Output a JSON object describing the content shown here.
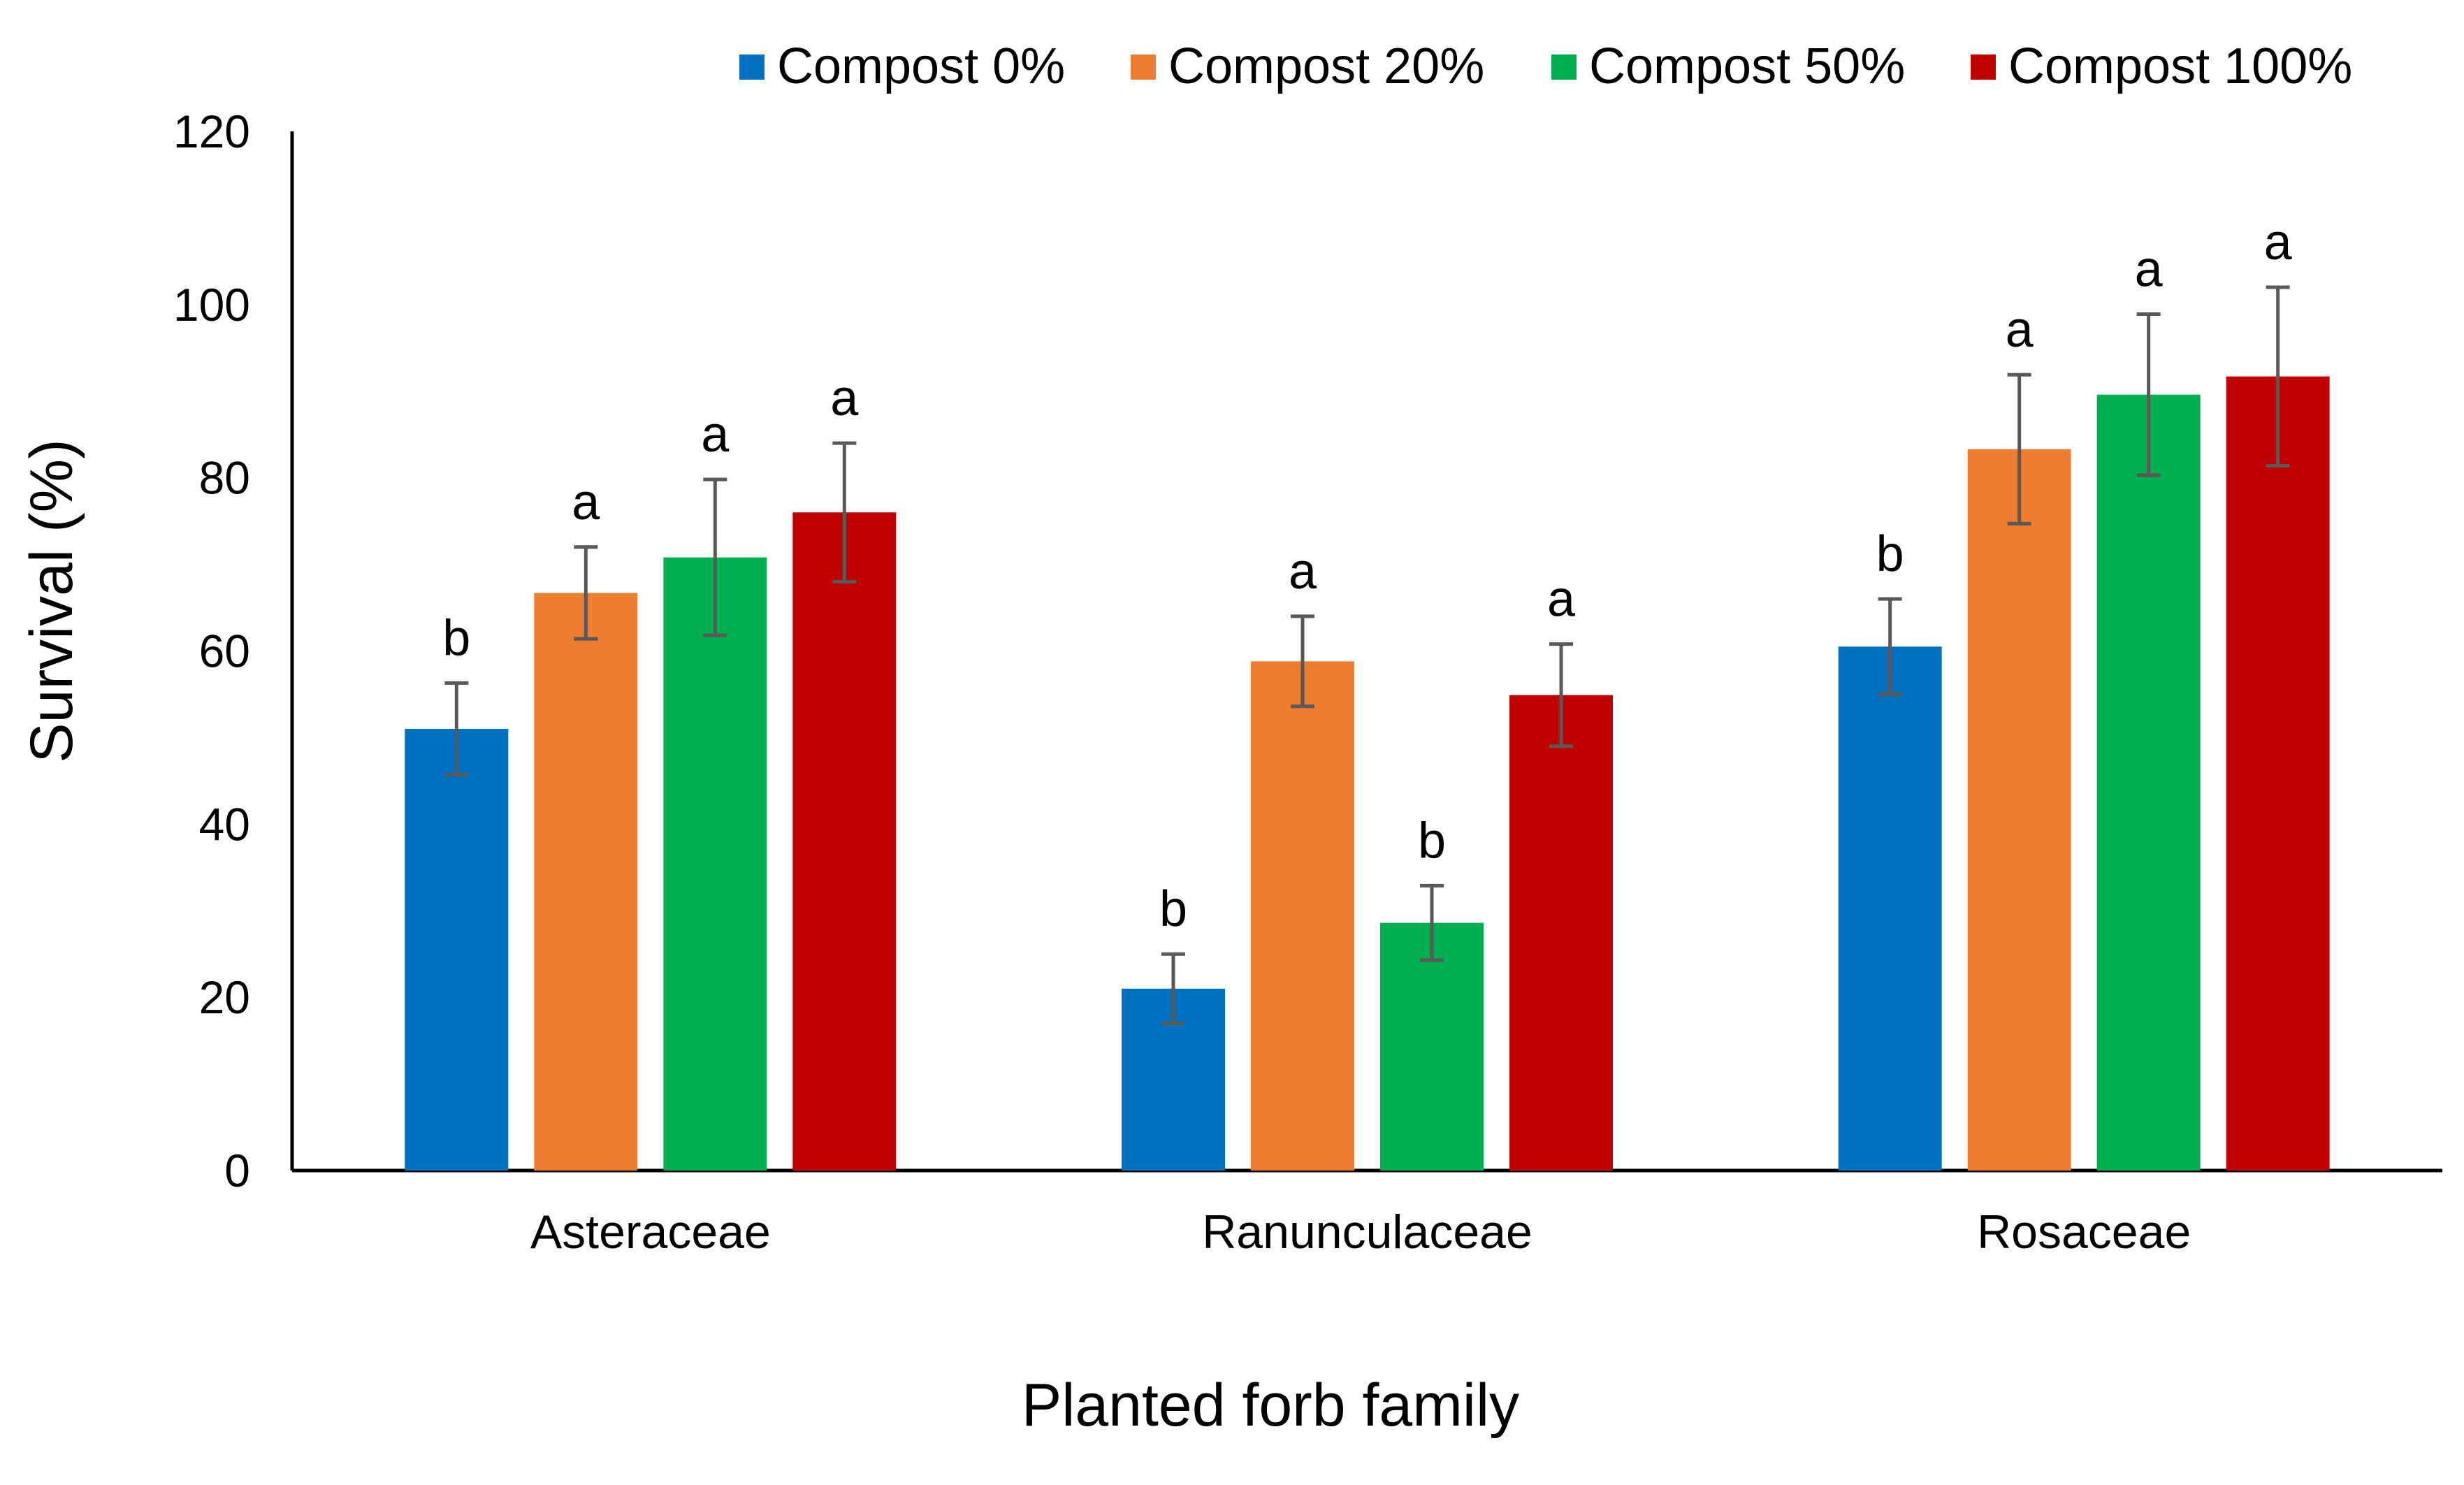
{
  "chart_data": {
    "type": "bar",
    "title": "",
    "xlabel": "Planted forb family",
    "ylabel": "Survival (%)",
    "ylim": [
      0,
      120
    ],
    "yticks": [
      0,
      20,
      40,
      60,
      80,
      100,
      120
    ],
    "grid": false,
    "legend_position": "top",
    "categories": [
      "Asteraceae",
      "Ranunculaceae",
      "Rosaceae"
    ],
    "series": [
      {
        "name": "Compost 0%",
        "color": "#0070C0",
        "values": [
          51,
          21,
          60.5
        ],
        "errors": [
          5.3,
          4,
          5.5
        ],
        "letters": [
          "b",
          "b",
          "b"
        ]
      },
      {
        "name": "Compost 20%",
        "color": "#ED7D31",
        "values": [
          66.7,
          58.8,
          83.3
        ],
        "errors": [
          5.3,
          5.2,
          8.6
        ],
        "letters": [
          "a",
          "a",
          "a"
        ]
      },
      {
        "name": "Compost 50%",
        "color": "#00B050",
        "values": [
          70.8,
          28.6,
          89.6
        ],
        "errors": [
          9,
          4.3,
          9.3
        ],
        "letters": [
          "a",
          "b",
          "a"
        ]
      },
      {
        "name": "Compost 100%",
        "color": "#C00000",
        "values": [
          76,
          54.9,
          91.7
        ],
        "errors": [
          8,
          5.9,
          10.3
        ],
        "letters": [
          "a",
          "a",
          "a"
        ]
      }
    ]
  }
}
